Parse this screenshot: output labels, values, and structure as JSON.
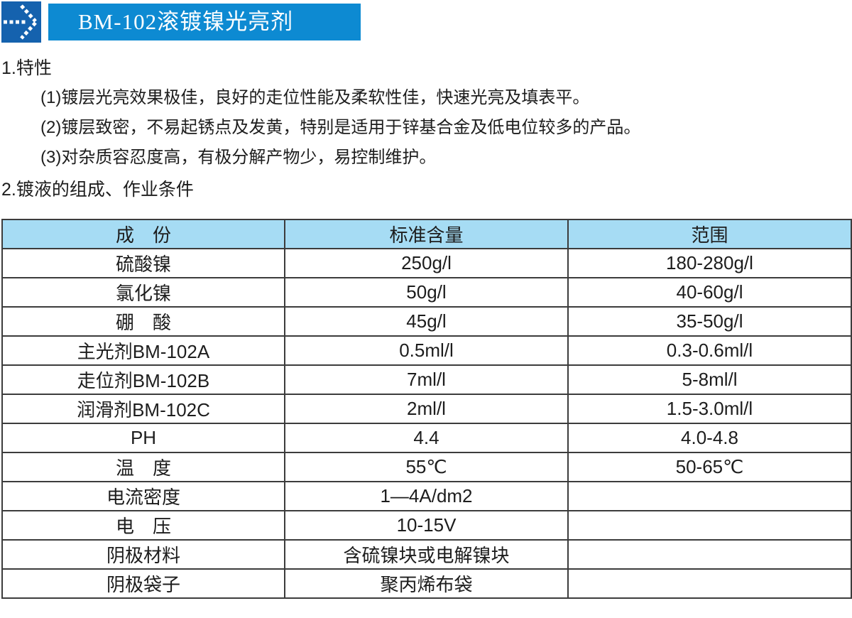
{
  "header": {
    "title": "BM-102滚镀镍光亮剂",
    "logo_icon": "dotted-arrow-right-icon",
    "colors": {
      "logo_bg": "#1562ae",
      "banner_bg": "#0d8ad2",
      "title_text": "#ffffff"
    }
  },
  "sections": {
    "features": {
      "heading": "1.特性",
      "items": [
        "(1)镀层光亮效果极佳，良好的走位性能及柔软性佳，快速光亮及填表平。",
        "(2)镀层致密，不易起锈点及发黄，特别是适用于锌基合金及低电位较多的产品。",
        "(3)对杂质容忍度高，有极分解产物少，易控制维护。"
      ]
    },
    "composition": {
      "heading": "2.镀液的组成、作业条件"
    }
  },
  "table": {
    "columns": [
      "成　份",
      "标准含量",
      "范围"
    ],
    "rows": [
      [
        "硫酸镍",
        "250g/l",
        "180-280g/l"
      ],
      [
        "氯化镍",
        "50g/l",
        "40-60g/l"
      ],
      [
        "硼　酸",
        "45g/l",
        "35-50g/l"
      ],
      [
        "主光剂BM-102A",
        "0.5ml/l",
        "0.3-0.6ml/l"
      ],
      [
        "走位剂BM-102B",
        "7ml/l",
        "5-8ml/l"
      ],
      [
        "润滑剂BM-102C",
        "2ml/l",
        "1.5-3.0ml/l"
      ],
      [
        "PH",
        "4.4",
        "4.0-4.8"
      ],
      [
        "温　度",
        "55℃",
        "50-65℃"
      ],
      [
        "电流密度",
        "1—4A/dm2",
        ""
      ],
      [
        "电　压",
        "10-15V",
        ""
      ],
      [
        "阴极材料",
        "含硫镍块或电解镍块",
        ""
      ],
      [
        "阴极袋子",
        "聚丙烯布袋",
        ""
      ]
    ],
    "colors": {
      "header_bg": "#a6dcf4",
      "border": "#3c3c3c"
    }
  }
}
